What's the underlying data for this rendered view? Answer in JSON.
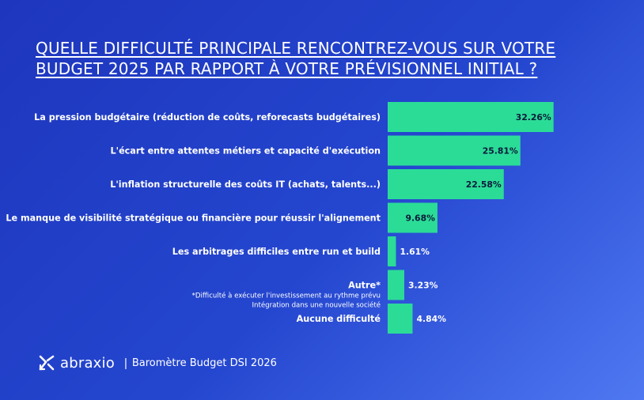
{
  "title_lines": [
    "QUELLE DIFFICULTÉ PRINCIPALE RENCONTREZ-VOUS SUR VOTRE",
    "BUDGET 2025 PAR RAPPORT À VOTRE PRÉVISIONNEL INITIAL ?"
  ],
  "footer": {
    "brand": "abraxio",
    "separator": "|",
    "subtitle": "Baromètre Budget DSI 2026",
    "logo_icon": "abraxio-logo-icon"
  },
  "colors": {
    "bar": "#2bdc97",
    "background_start": "#1e36bd",
    "background_end": "#4f78f2",
    "label_inside": "#0b1a3a",
    "label_outside": "#ffffff"
  },
  "chart_data": {
    "type": "bar",
    "orientation": "horizontal",
    "categories": [
      "La pression budgétaire (réduction de coûts, reforecasts budgétaires)",
      "L'écart entre attentes métiers et capacité d'exécution",
      "L'inflation structurelle des coûts IT (achats, talents...)",
      "Le manque de visibilité stratégique ou financière pour réussir l'alignement",
      "Les arbitrages difficiles entre run et build",
      "Autre*",
      "Aucune difficulté"
    ],
    "values": [
      32.26,
      25.81,
      22.58,
      9.68,
      1.61,
      3.23,
      4.84
    ],
    "value_labels": [
      "32.26%",
      "25.81%",
      "22.58%",
      "9.68%",
      "1.61%",
      "3.23%",
      "4.84%"
    ],
    "notes": {
      "Autre*": [
        "*Difficulté à exécuter l'investissement au rythme prévu",
        "Intégration dans une nouvelle société"
      ]
    },
    "grid": false,
    "legend": "none"
  }
}
